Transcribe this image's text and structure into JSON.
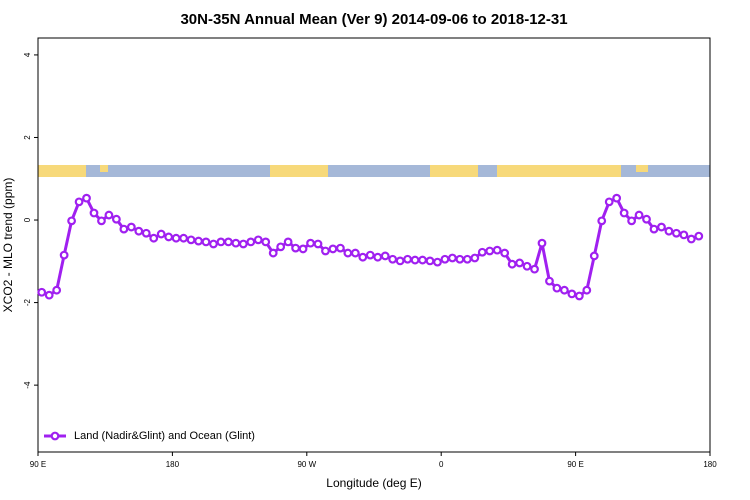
{
  "chart_data": {
    "type": "line",
    "title": "30N-35N Annual Mean (Ver 9)   2014-09-06 to 2018-12-31",
    "x_label": "Longitude (deg E)",
    "y_label": "XCO2 - MLO trend (ppm)",
    "x": [
      92.5,
      97.5,
      102.5,
      107.5,
      112.5,
      117.5,
      122.5,
      127.5,
      132.5,
      137.5,
      142.5,
      147.5,
      152.5,
      157.5,
      162.5,
      167.5,
      172.5,
      177.5,
      182.5,
      187.5,
      192.5,
      197.5,
      202.5,
      207.5,
      212.5,
      217.5,
      222.5,
      227.5,
      232.5,
      237.5,
      242.5,
      247.5,
      252.5,
      257.5,
      262.5,
      267.5,
      272.5,
      277.5,
      282.5,
      287.5,
      292.5,
      297.5,
      302.5,
      307.5,
      312.5,
      317.5,
      322.5,
      327.5,
      332.5,
      337.5,
      342.5,
      347.5,
      352.5,
      357.5,
      362.5,
      367.5,
      372.5,
      377.5,
      382.5,
      387.5,
      392.5,
      397.5,
      402.5,
      407.5,
      412.5,
      417.5,
      422.5,
      427.5,
      432.5,
      437.5,
      442.5,
      447.5,
      452.5,
      457.5,
      462.5,
      467.5,
      472.5,
      477.5,
      482.5,
      487.5,
      492.5,
      497.5,
      502.5,
      507.5,
      512.5,
      517.5,
      522.5,
      527.5,
      532.5
    ],
    "series": [
      {
        "name": "Land (Nadir&Glint) and Ocean (Glint)",
        "color": "#a020f0",
        "values": [
          -1.75,
          -1.82,
          -1.7,
          -0.85,
          -0.02,
          0.44,
          0.53,
          0.17,
          -0.02,
          0.12,
          0.02,
          -0.22,
          -0.17,
          -0.27,
          -0.32,
          -0.44,
          -0.34,
          -0.41,
          -0.44,
          -0.44,
          -0.48,
          -0.51,
          -0.53,
          -0.58,
          -0.53,
          -0.53,
          -0.56,
          -0.58,
          -0.53,
          -0.48,
          -0.53,
          -0.8,
          -0.65,
          -0.53,
          -0.68,
          -0.7,
          -0.56,
          -0.58,
          -0.75,
          -0.7,
          -0.68,
          -0.8,
          -0.8,
          -0.9,
          -0.85,
          -0.9,
          -0.87,
          -0.95,
          -0.99,
          -0.95,
          -0.97,
          -0.97,
          -0.99,
          -1.02,
          -0.95,
          -0.92,
          -0.95,
          -0.95,
          -0.92,
          -0.78,
          -0.75,
          -0.73,
          -0.8,
          -1.07,
          -1.04,
          -1.12,
          -1.19,
          -0.56,
          -1.48,
          -1.65,
          -1.7,
          -1.79,
          -1.84,
          -1.7,
          -0.87,
          -0.02,
          0.44,
          0.53,
          0.17,
          -0.02,
          0.12,
          0.02,
          -0.22,
          -0.17,
          -0.27,
          -0.32,
          -0.36,
          -0.46,
          -0.39
        ]
      }
    ],
    "xlim": [
      90,
      540
    ],
    "xticks": [
      {
        "value": 90,
        "label": "90 E"
      },
      180,
      {
        "value": 270,
        "label": "90 W"
      },
      {
        "value": 360,
        "label": "0"
      },
      {
        "value": 450,
        "label": "90 E"
      },
      {
        "value": 540,
        "label": "180"
      }
    ],
    "ylim": [
      -5.62,
      4.41
    ],
    "yticks": [
      -4,
      -2,
      0,
      2,
      4
    ],
    "legend": "bottom-left"
  }
}
